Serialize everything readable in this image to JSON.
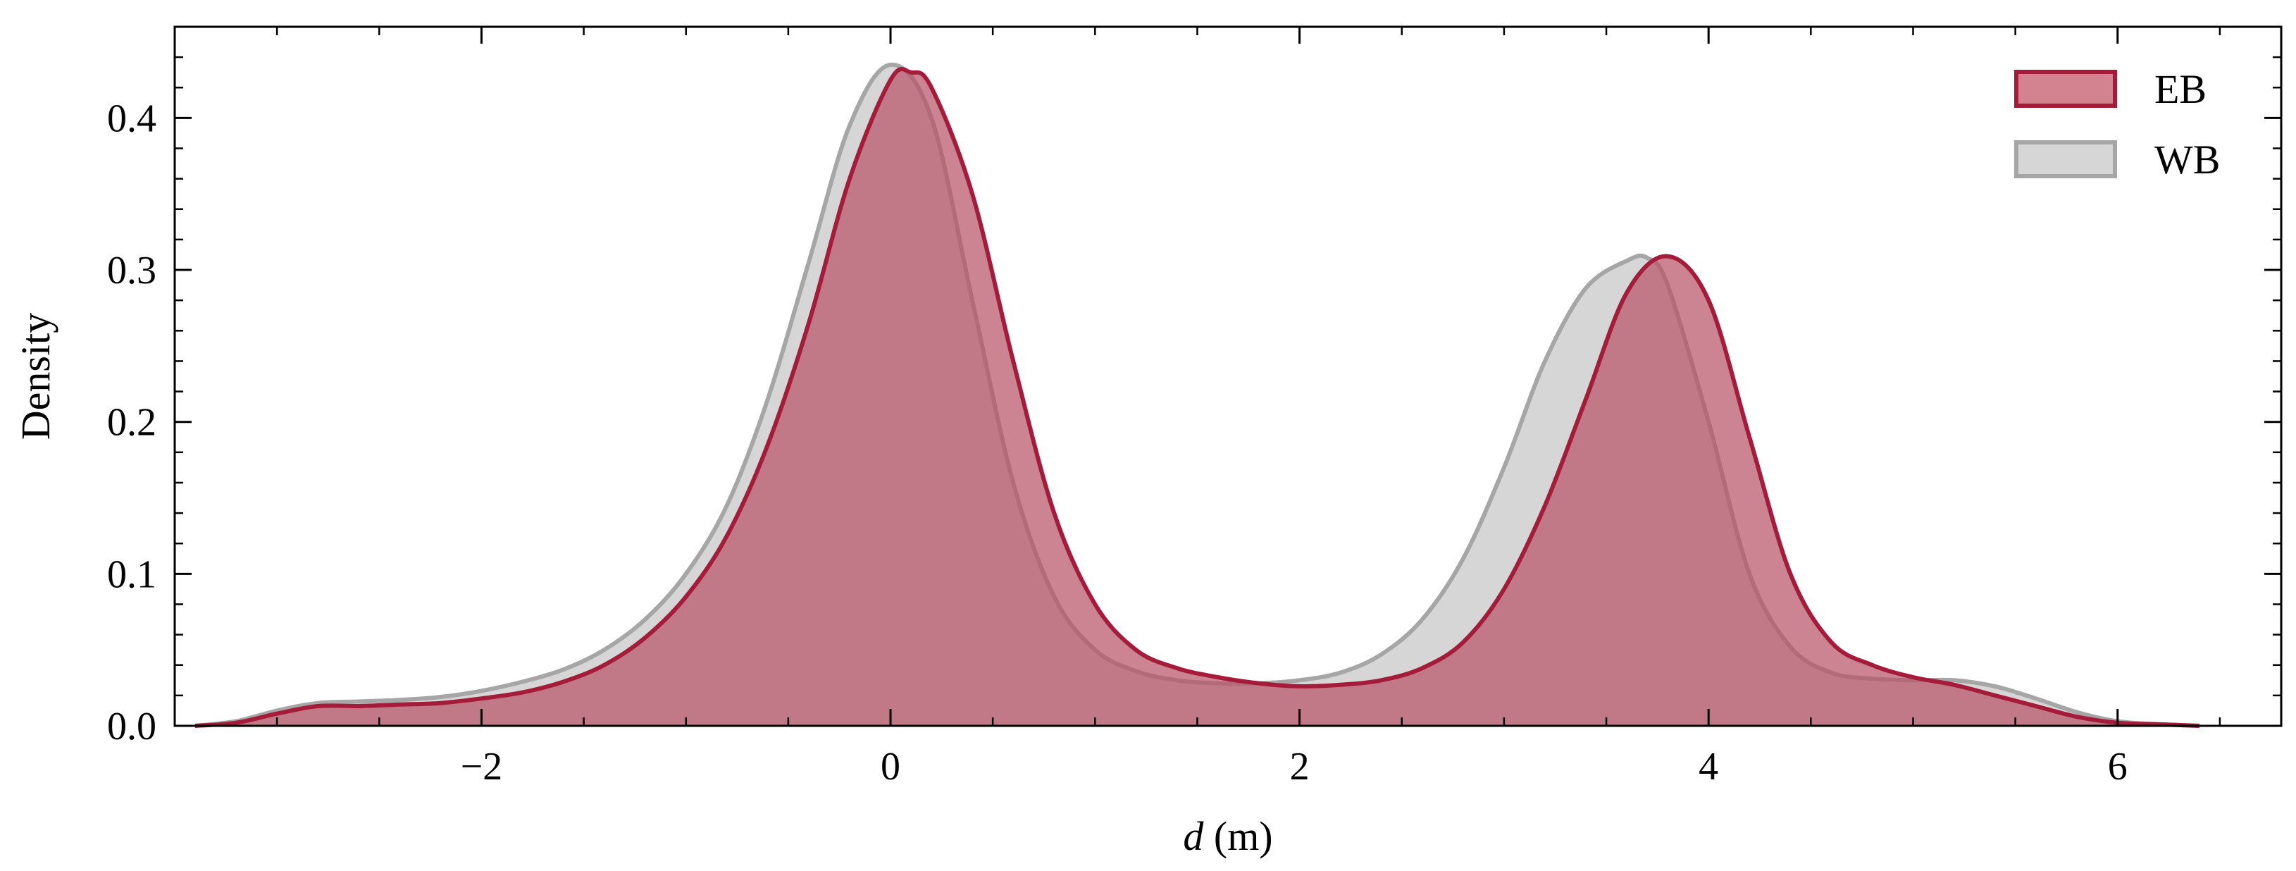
{
  "chart_data": {
    "type": "area",
    "xlabel_var": "d",
    "xlabel_unit": " (m)",
    "ylabel": "Density",
    "xlim": [
      -3.5,
      6.8
    ],
    "ylim": [
      0,
      0.46
    ],
    "xticks": [
      -2,
      0,
      2,
      4,
      6
    ],
    "xtick_labels": [
      "−2",
      "0",
      "2",
      "4",
      "6"
    ],
    "yticks": [
      0.0,
      0.1,
      0.2,
      0.3,
      0.4
    ],
    "ytick_labels": [
      "0.0",
      "0.1",
      "0.2",
      "0.3",
      "0.4"
    ],
    "grid": false,
    "legend_position": "top-right",
    "series": [
      {
        "name": "WB",
        "fill_color": "#c8c8c8",
        "line_color": "#a6a6a6",
        "x": [
          -3.4,
          -3.2,
          -3.0,
          -2.8,
          -2.6,
          -2.4,
          -2.2,
          -2.0,
          -1.8,
          -1.6,
          -1.4,
          -1.2,
          -1.0,
          -0.8,
          -0.6,
          -0.4,
          -0.2,
          0.0,
          0.2,
          0.4,
          0.6,
          0.8,
          1.0,
          1.2,
          1.4,
          1.6,
          1.8,
          2.0,
          2.2,
          2.4,
          2.6,
          2.8,
          3.0,
          3.2,
          3.4,
          3.6,
          3.7,
          3.8,
          4.0,
          4.2,
          4.4,
          4.6,
          4.8,
          5.0,
          5.2,
          5.4,
          5.6,
          5.8,
          6.0,
          6.2,
          6.4
        ],
        "y": [
          0.0,
          0.003,
          0.01,
          0.015,
          0.016,
          0.017,
          0.019,
          0.023,
          0.029,
          0.037,
          0.05,
          0.07,
          0.1,
          0.145,
          0.215,
          0.305,
          0.395,
          0.435,
          0.4,
          0.28,
          0.16,
          0.085,
          0.05,
          0.036,
          0.03,
          0.028,
          0.028,
          0.03,
          0.035,
          0.047,
          0.07,
          0.11,
          0.17,
          0.24,
          0.288,
          0.306,
          0.308,
          0.29,
          0.2,
          0.1,
          0.052,
          0.035,
          0.031,
          0.03,
          0.03,
          0.026,
          0.018,
          0.009,
          0.003,
          0.001,
          0.0
        ]
      },
      {
        "name": "EB",
        "fill_color": "#b85568",
        "line_color": "#a51c3a",
        "x": [
          -3.4,
          -3.2,
          -3.0,
          -2.8,
          -2.6,
          -2.4,
          -2.2,
          -2.0,
          -1.8,
          -1.6,
          -1.4,
          -1.2,
          -1.0,
          -0.8,
          -0.6,
          -0.4,
          -0.2,
          0.0,
          0.1,
          0.2,
          0.4,
          0.6,
          0.8,
          1.0,
          1.2,
          1.4,
          1.6,
          1.8,
          2.0,
          2.2,
          2.4,
          2.6,
          2.8,
          3.0,
          3.2,
          3.4,
          3.6,
          3.8,
          4.0,
          4.2,
          4.4,
          4.6,
          4.8,
          5.0,
          5.2,
          5.4,
          5.6,
          5.8,
          6.0,
          6.2,
          6.4
        ],
        "y": [
          0.0,
          0.002,
          0.008,
          0.013,
          0.013,
          0.014,
          0.015,
          0.018,
          0.022,
          0.029,
          0.04,
          0.058,
          0.085,
          0.125,
          0.185,
          0.265,
          0.36,
          0.425,
          0.43,
          0.42,
          0.35,
          0.24,
          0.14,
          0.08,
          0.05,
          0.038,
          0.032,
          0.028,
          0.026,
          0.027,
          0.03,
          0.038,
          0.055,
          0.09,
          0.145,
          0.215,
          0.285,
          0.309,
          0.28,
          0.19,
          0.1,
          0.055,
          0.04,
          0.032,
          0.027,
          0.02,
          0.013,
          0.006,
          0.002,
          0.001,
          0.0
        ]
      }
    ]
  }
}
